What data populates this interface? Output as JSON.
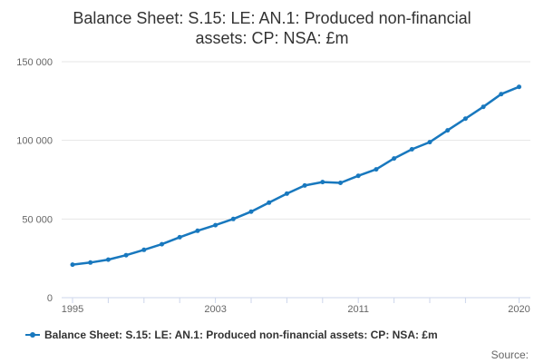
{
  "header": {
    "title": "Balance Sheet: S.15: LE: AN.1: Produced non-financial assets: CP: NSA: £m"
  },
  "chart_data": {
    "type": "line",
    "title": "Balance Sheet: S.15: LE: AN.1: Produced non-financial assets: CP: NSA: £m",
    "xlabel": "",
    "ylabel": "",
    "x": [
      1995,
      1996,
      1997,
      1998,
      1999,
      2000,
      2001,
      2002,
      2003,
      2004,
      2005,
      2006,
      2007,
      2008,
      2009,
      2010,
      2011,
      2012,
      2013,
      2014,
      2015,
      2016,
      2017,
      2018,
      2019,
      2020
    ],
    "series": [
      {
        "name": "Balance Sheet: S.15: LE: AN.1: Produced non-financial assets: CP: NSA: £m",
        "color": "#1878be",
        "values": [
          21000,
          22300,
          24200,
          27000,
          30400,
          34000,
          38400,
          42500,
          46100,
          50000,
          54700,
          60400,
          66100,
          71300,
          73500,
          73000,
          77500,
          81600,
          88500,
          94300,
          98900,
          106400,
          113800,
          121300,
          129400,
          134000
        ]
      }
    ],
    "xlim": [
      1995,
      2020
    ],
    "ylim": [
      0,
      150000
    ],
    "y_ticks": [
      0,
      50000,
      100000,
      150000
    ],
    "y_tick_labels": [
      "0",
      "50 000",
      "100 000",
      "150 000"
    ],
    "x_tick_years": [
      1995,
      1997,
      1999,
      2001,
      2003,
      2005,
      2007,
      2009,
      2011,
      2013,
      2015,
      2017,
      2020
    ],
    "x_labeled_years": [
      1995,
      2003,
      2011,
      2020
    ],
    "grid": "horizontal",
    "legend_position": "bottom-left"
  },
  "legend": {
    "label": "Balance Sheet: S.15: LE: AN.1: Produced non-financial assets: CP: NSA: £m"
  },
  "footer": {
    "source_label": "Source:"
  },
  "colors": {
    "series": "#1878be",
    "axis_line": "#ccd6eb",
    "gridline": "#e6e6e6",
    "title_text": "#333333",
    "axis_text": "#666666",
    "legend_text": "#333333",
    "source_text": "#666666"
  }
}
